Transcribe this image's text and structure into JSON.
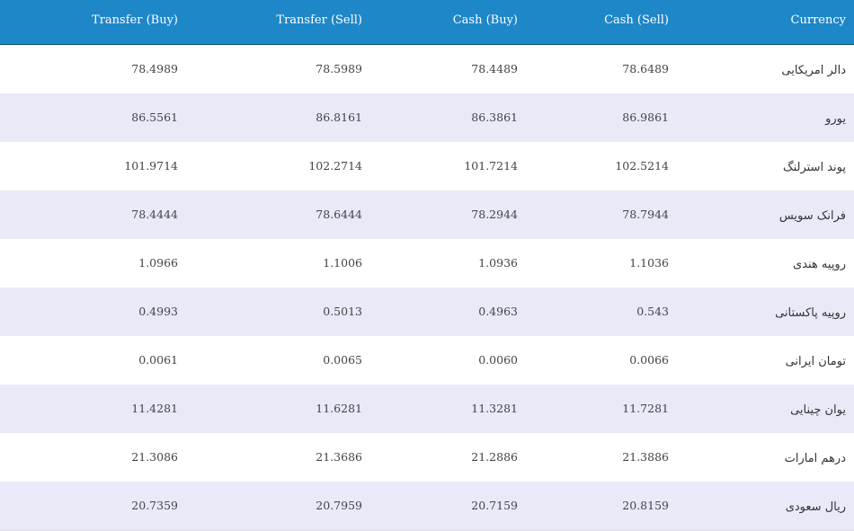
{
  "table": {
    "headers": [
      "Transfer (Buy)",
      "Transfer (Sell)",
      "Cash (Buy)",
      "Cash (Sell)",
      "Currency"
    ],
    "rows": [
      {
        "transfer_buy": "78.4989",
        "transfer_sell": "78.5989",
        "cash_buy": "78.4489",
        "cash_sell": "78.6489",
        "currency": "دالر امریکایی"
      },
      {
        "transfer_buy": "86.5561",
        "transfer_sell": "86.8161",
        "cash_buy": "86.3861",
        "cash_sell": "86.9861",
        "currency": "یورو"
      },
      {
        "transfer_buy": "101.9714",
        "transfer_sell": "102.2714",
        "cash_buy": "101.7214",
        "cash_sell": "102.5214",
        "currency": "پوند استرلنگ"
      },
      {
        "transfer_buy": "78.4444",
        "transfer_sell": "78.6444",
        "cash_buy": "78.2944",
        "cash_sell": "78.7944",
        "currency": "فرانک سویس"
      },
      {
        "transfer_buy": "1.0966",
        "transfer_sell": "1.1006",
        "cash_buy": "1.0936",
        "cash_sell": "1.1036",
        "currency": "روپیه هندی"
      },
      {
        "transfer_buy": "0.4993",
        "transfer_sell": "0.5013",
        "cash_buy": "0.4963",
        "cash_sell": "0.543",
        "currency": "روپیه پاکستانی"
      },
      {
        "transfer_buy": "0.0061",
        "transfer_sell": "0.0065",
        "cash_buy": "0.0060",
        "cash_sell": "0.0066",
        "currency": "تومان ایرانی"
      },
      {
        "transfer_buy": "11.4281",
        "transfer_sell": "11.6281",
        "cash_buy": "11.3281",
        "cash_sell": "11.7281",
        "currency": "یوان چینایی"
      },
      {
        "transfer_buy": "21.3086",
        "transfer_sell": "21.3686",
        "cash_buy": "21.2886",
        "cash_sell": "21.3886",
        "currency": "درهم امارات"
      },
      {
        "transfer_buy": "20.7359",
        "transfer_sell": "20.7959",
        "cash_buy": "20.7159",
        "cash_sell": "20.8159",
        "currency": "ریال سعودی"
      }
    ]
  },
  "colors": {
    "header_background": "#1e87c8",
    "row_alternate": "#e8eaf8"
  }
}
